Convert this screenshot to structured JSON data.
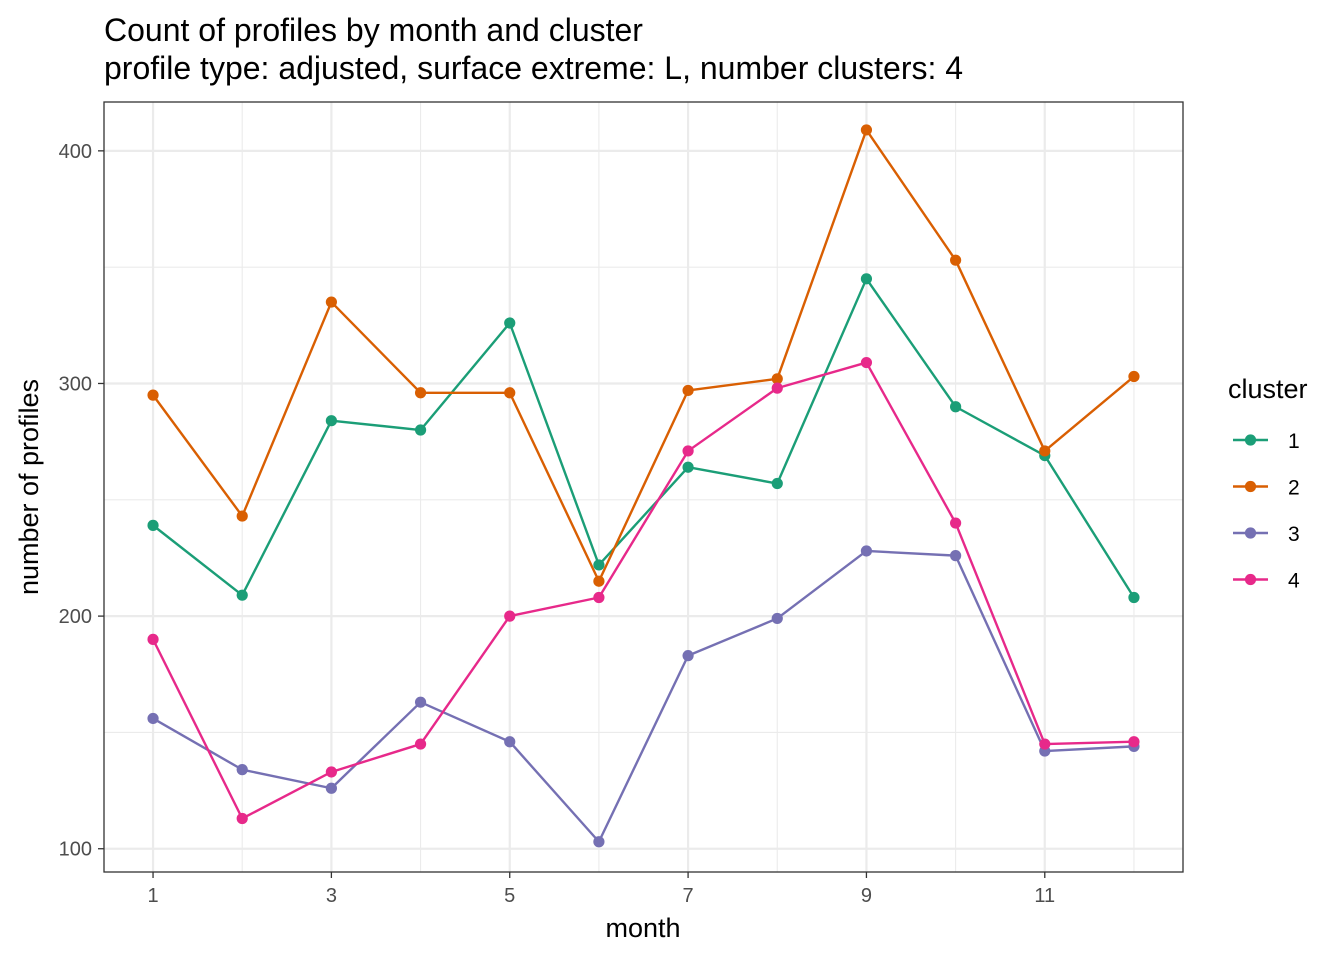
{
  "chart_data": {
    "type": "line",
    "title": "Count of profiles by month and cluster",
    "subtitle": "profile type: adjusted, surface extreme: L, number clusters: 4",
    "xlabel": "month",
    "ylabel": "number of profiles",
    "x": [
      1,
      2,
      3,
      4,
      5,
      6,
      7,
      8,
      9,
      10,
      11,
      12
    ],
    "xlim": [
      0.45,
      12.55
    ],
    "ylim": [
      90,
      421
    ],
    "x_ticks": [
      1,
      3,
      5,
      7,
      9,
      11
    ],
    "y_ticks": [
      100,
      200,
      300,
      400
    ],
    "grid": true,
    "legend_title": "cluster",
    "legend_position": "right",
    "series": [
      {
        "name": "1",
        "color": "#1b9e77",
        "values": [
          239,
          209,
          284,
          280,
          326,
          222,
          264,
          257,
          345,
          290,
          269,
          208
        ]
      },
      {
        "name": "2",
        "color": "#d95f02",
        "values": [
          295,
          243,
          335,
          296,
          296,
          215,
          297,
          302,
          409,
          353,
          271,
          303
        ]
      },
      {
        "name": "3",
        "color": "#7570b3",
        "values": [
          156,
          134,
          126,
          163,
          146,
          103,
          183,
          199,
          228,
          226,
          142,
          144
        ]
      },
      {
        "name": "4",
        "color": "#e7298a",
        "values": [
          190,
          113,
          133,
          145,
          200,
          208,
          271,
          298,
          309,
          240,
          145,
          146
        ]
      }
    ]
  }
}
